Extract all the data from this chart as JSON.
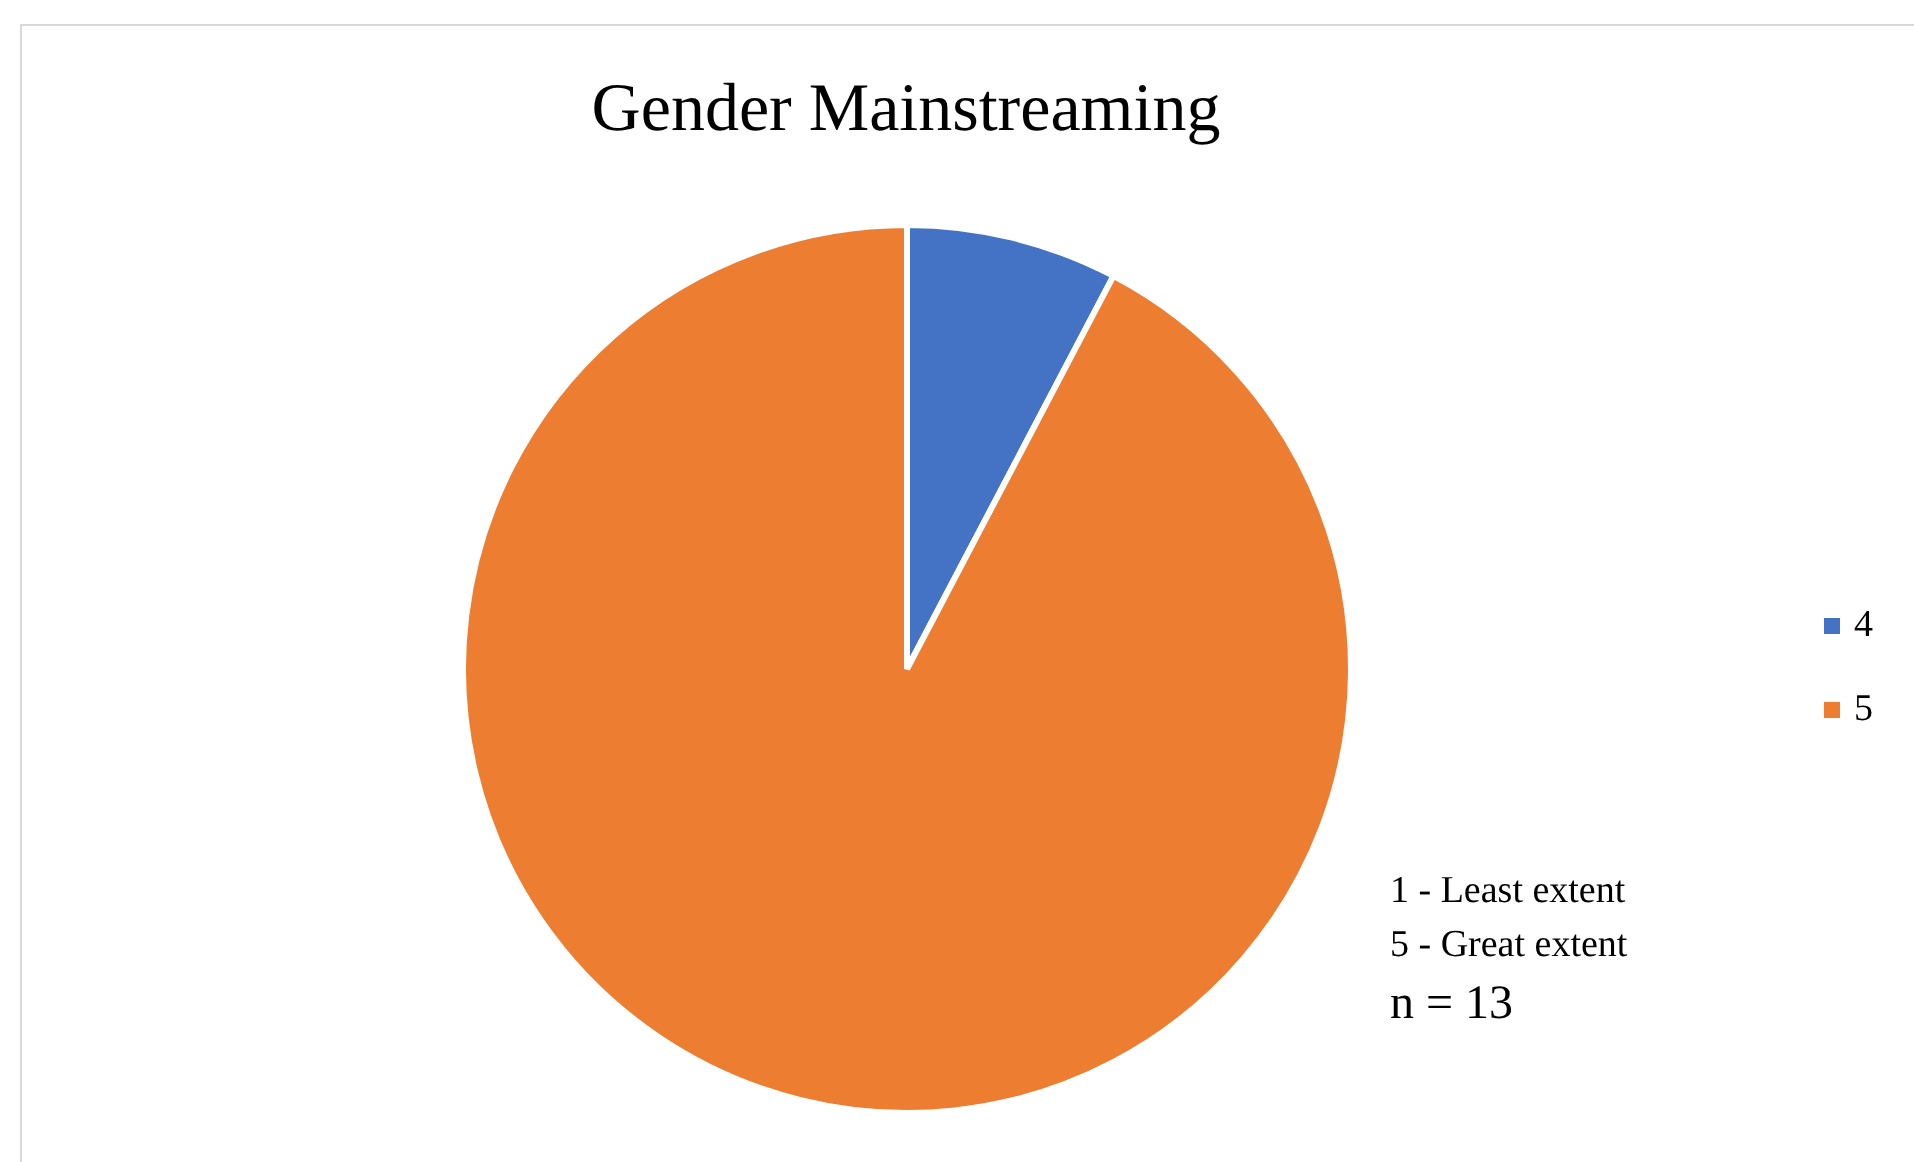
{
  "chart_data": {
    "type": "pie",
    "title": "Gender Mainstreaming",
    "categories": [
      "4",
      "5"
    ],
    "values": [
      7.7,
      92.3
    ],
    "colors": [
      "#4472c4",
      "#ed7d31"
    ],
    "legend": "right",
    "annotations": [
      "1 - Least extent",
      "5 - Great extent",
      "n = 13"
    ]
  }
}
